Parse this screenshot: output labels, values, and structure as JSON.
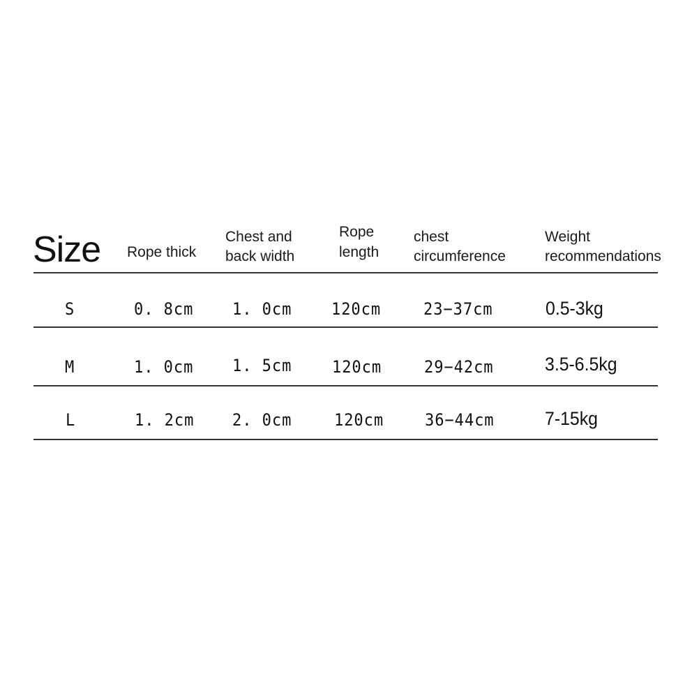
{
  "header": {
    "size": "Size",
    "rope_thick": "Rope thick",
    "chest_back_width": [
      "Chest and",
      "back width"
    ],
    "rope_length": [
      "Rope",
      "length"
    ],
    "chest_circumference": [
      "chest",
      "circumference"
    ],
    "weight_recommendations": [
      "Weight",
      "recommendations"
    ]
  },
  "rows": [
    {
      "size": "S",
      "rope_thick": "0. 8cm",
      "chest_back_width": "1. 0cm",
      "rope_length": "120cm",
      "chest_circumference": "23−37cm",
      "weight": "0.5-3kg"
    },
    {
      "size": "M",
      "rope_thick": "1. 0cm",
      "chest_back_width": "1. 5cm",
      "rope_length": "120cm",
      "chest_circumference": "29−42cm",
      "weight": "3.5-6.5kg"
    },
    {
      "size": "L",
      "rope_thick": "1. 2cm",
      "chest_back_width": "2. 0cm",
      "rope_length": "120cm",
      "chest_circumference": "36−44cm",
      "weight": "7-15kg"
    }
  ]
}
